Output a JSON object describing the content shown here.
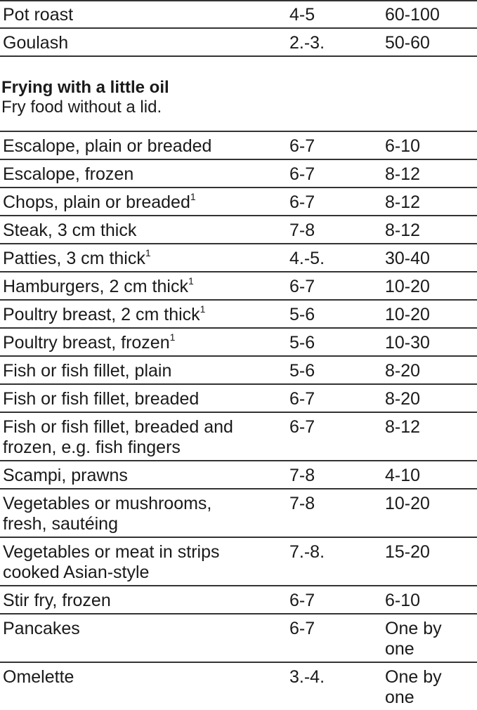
{
  "top_rows": [
    {
      "food": "Pot roast",
      "level": "4-5",
      "time": "60-100"
    },
    {
      "food": "Goulash",
      "level": "2.-3.",
      "time": "50-60"
    }
  ],
  "section": {
    "title": "Frying with a little oil",
    "subtitle": "Fry food without a lid."
  },
  "rows": [
    {
      "food": "Escalope, plain or breaded",
      "note": "",
      "level": "6-7",
      "time": "6-10"
    },
    {
      "food": "Escalope, frozen",
      "note": "",
      "level": "6-7",
      "time": "8-12"
    },
    {
      "food": "Chops, plain or breaded",
      "note": "1",
      "level": "6-7",
      "time": "8-12"
    },
    {
      "food": "Steak, 3 cm thick",
      "note": "",
      "level": "7-8",
      "time": "8-12"
    },
    {
      "food": "Patties, 3 cm thick",
      "note": "1",
      "level": "4.-5.",
      "time": "30-40"
    },
    {
      "food": "Hamburgers, 2 cm thick",
      "note": "1",
      "level": "6-7",
      "time": "10-20"
    },
    {
      "food": "Poultry breast, 2 cm thick",
      "note": "1",
      "level": "5-6",
      "time": "10-20"
    },
    {
      "food": "Poultry breast, frozen",
      "note": "1",
      "level": "5-6",
      "time": "10-30"
    },
    {
      "food": "Fish or fish fillet, plain",
      "note": "",
      "level": "5-6",
      "time": "8-20"
    },
    {
      "food": "Fish or fish fillet, breaded",
      "note": "",
      "level": "6-7",
      "time": "8-20"
    },
    {
      "food": "Fish or fish fillet, breaded and\nfrozen, e.g. fish fingers",
      "note": "",
      "level": "6-7",
      "time": "8-12"
    },
    {
      "food": "Scampi, prawns",
      "note": "",
      "level": "7-8",
      "time": "4-10"
    },
    {
      "food": "Vegetables or mushrooms,\nfresh, sautéing",
      "note": "",
      "level": "7-8",
      "time": "10-20"
    },
    {
      "food": "Vegetables or meat in strips\ncooked Asian-style",
      "note": "",
      "level": "7.-8.",
      "time": "15-20"
    },
    {
      "food": "Stir fry, frozen",
      "note": "",
      "level": "6-7",
      "time": "6-10"
    },
    {
      "food": "Pancakes",
      "note": "",
      "level": "6-7",
      "time": "One by\none"
    },
    {
      "food": "Omelette",
      "note": "",
      "level": "3.-4.",
      "time": "One by\none"
    }
  ]
}
